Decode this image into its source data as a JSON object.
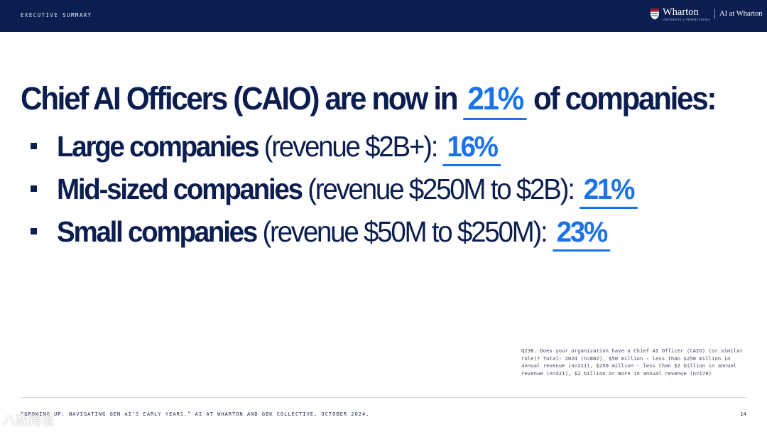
{
  "header": {
    "section_label": "EXECUTIVE SUMMARY",
    "logo_wordmark": "Wharton",
    "logo_subtitle": "UNIVERSITY of PENNSYLVANIA",
    "logo_unit": "AI at Wharton",
    "bar_color": "#0b1e4f"
  },
  "headline": {
    "pre": "Chief AI Officers (CAIO) are now in",
    "value": "21%",
    "post": "of companies:"
  },
  "bullets": [
    {
      "label": "Large companies",
      "detail": " (revenue $2B+): ",
      "value": "16%"
    },
    {
      "label": "Mid-sized companies",
      "detail": " (revenue $250M to $2B): ",
      "value": "21%"
    },
    {
      "label": "Small companies",
      "detail": " (revenue $50M to $250M): ",
      "value": "23%"
    }
  ],
  "footnote": "Q238. Does your organization have a Chief AI Officer (CAIO) (or similar role)? Total: 2024 (n=802), $50 million - less than $250 million in annual revenue (n=211), $250 million - less than $2 billion in annual revenue (n=421), $2 billion or more in annual revenue (n=170)",
  "footer": {
    "citation": "“GROWING UP: NAVIGATING GEN AI’S EARLY YEARS.” AI AT WHARTON AND GBK COLLECTIVE, OCTOBER 2024.",
    "page_number": "14"
  },
  "watermark": "八数跨境",
  "colors": {
    "navy": "#0b1e4f",
    "accent": "#1a73e8"
  }
}
